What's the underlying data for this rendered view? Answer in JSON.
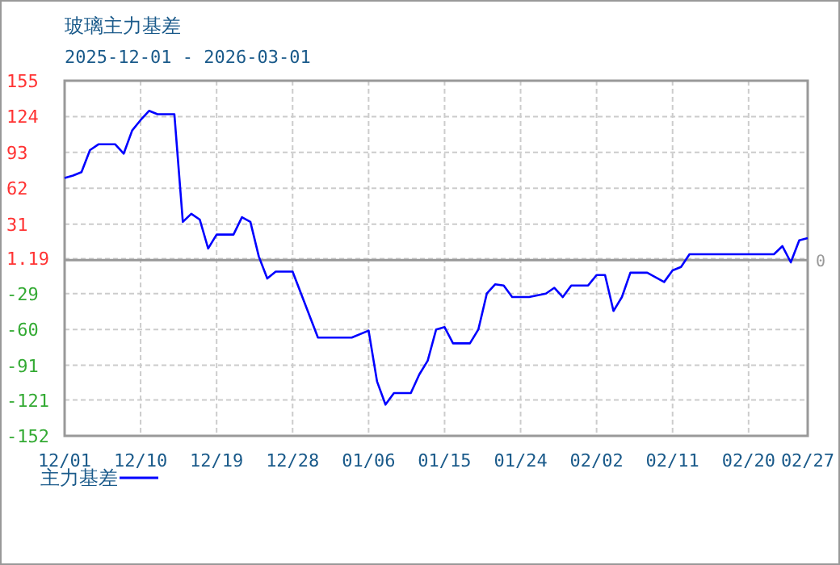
{
  "chart_data": {
    "type": "line",
    "title": "玻璃主力基差",
    "subtitle": "2025-12-01 - 2026-03-01",
    "x": [
      "2025-12-01",
      "2025-12-02",
      "2025-12-03",
      "2025-12-04",
      "2025-12-05",
      "2025-12-07",
      "2025-12-08",
      "2025-12-09",
      "2025-12-10",
      "2025-12-11",
      "2025-12-12",
      "2025-12-14",
      "2025-12-15",
      "2025-12-16",
      "2025-12-17",
      "2025-12-18",
      "2025-12-19",
      "2025-12-21",
      "2025-12-22",
      "2025-12-23",
      "2025-12-24",
      "2025-12-25",
      "2025-12-26",
      "2025-12-28",
      "2025-12-31",
      "2026-01-04",
      "2026-01-06",
      "2026-01-07",
      "2026-01-08",
      "2026-01-09",
      "2026-01-11",
      "2026-01-12",
      "2026-01-13",
      "2026-01-14",
      "2026-01-15",
      "2026-01-16",
      "2026-01-18",
      "2026-01-19",
      "2026-01-20",
      "2026-01-21",
      "2026-01-22",
      "2026-01-23",
      "2026-01-25",
      "2026-01-27",
      "2026-01-28",
      "2026-01-29",
      "2026-01-30",
      "2026-02-01",
      "2026-02-02",
      "2026-02-03",
      "2026-02-04",
      "2026-02-05",
      "2026-02-06",
      "2026-02-08",
      "2026-02-10",
      "2026-02-11",
      "2026-02-12",
      "2026-02-13",
      "2026-02-23",
      "2026-02-24",
      "2026-02-25",
      "2026-02-26",
      "2026-02-27"
    ],
    "series": [
      {
        "name": "主力基差",
        "color": "#0000ff",
        "values": [
          71,
          73,
          76,
          95,
          100,
          100,
          92,
          112,
          121,
          129,
          126,
          126,
          33,
          40,
          35,
          10,
          22,
          22,
          37,
          33,
          3,
          -16,
          -10,
          -10,
          -67,
          -67,
          -61,
          -105,
          -125,
          -115,
          -115,
          -99,
          -87,
          -60,
          -58,
          -72,
          -72,
          -60,
          -29,
          -21,
          -22,
          -32,
          -32,
          -29,
          -24,
          -32,
          -22,
          -22,
          -13,
          -13,
          -44,
          -32,
          -11,
          -11,
          -19,
          -9,
          -6,
          5,
          5,
          12,
          -2,
          17,
          19
        ]
      }
    ],
    "xlim": [
      "2025-12-01",
      "2026-02-27"
    ],
    "xticks": [
      {
        "value": "2025-12-01",
        "label": "12/01"
      },
      {
        "value": "2025-12-10",
        "label": "12/10"
      },
      {
        "value": "2025-12-19",
        "label": "12/19"
      },
      {
        "value": "2025-12-28",
        "label": "12/28"
      },
      {
        "value": "2026-01-06",
        "label": "01/06"
      },
      {
        "value": "2026-01-15",
        "label": "01/15"
      },
      {
        "value": "2026-01-24",
        "label": "01/24"
      },
      {
        "value": "2026-02-02",
        "label": "02/02"
      },
      {
        "value": "2026-02-11",
        "label": "02/11"
      },
      {
        "value": "2026-02-20",
        "label": "02/20"
      },
      {
        "value": "2026-02-27",
        "label": "02/27"
      }
    ],
    "ylim": [
      -152,
      155
    ],
    "yticks": [
      155,
      124,
      93,
      62,
      31,
      1.19,
      -29,
      -60,
      -91,
      -121,
      -152
    ],
    "ref_lines": [
      {
        "axis": "y",
        "value": 0,
        "label": "0",
        "color": "#999999"
      }
    ],
    "grid": true,
    "legend": "bottom",
    "line_style": "solid",
    "marker": "none"
  }
}
